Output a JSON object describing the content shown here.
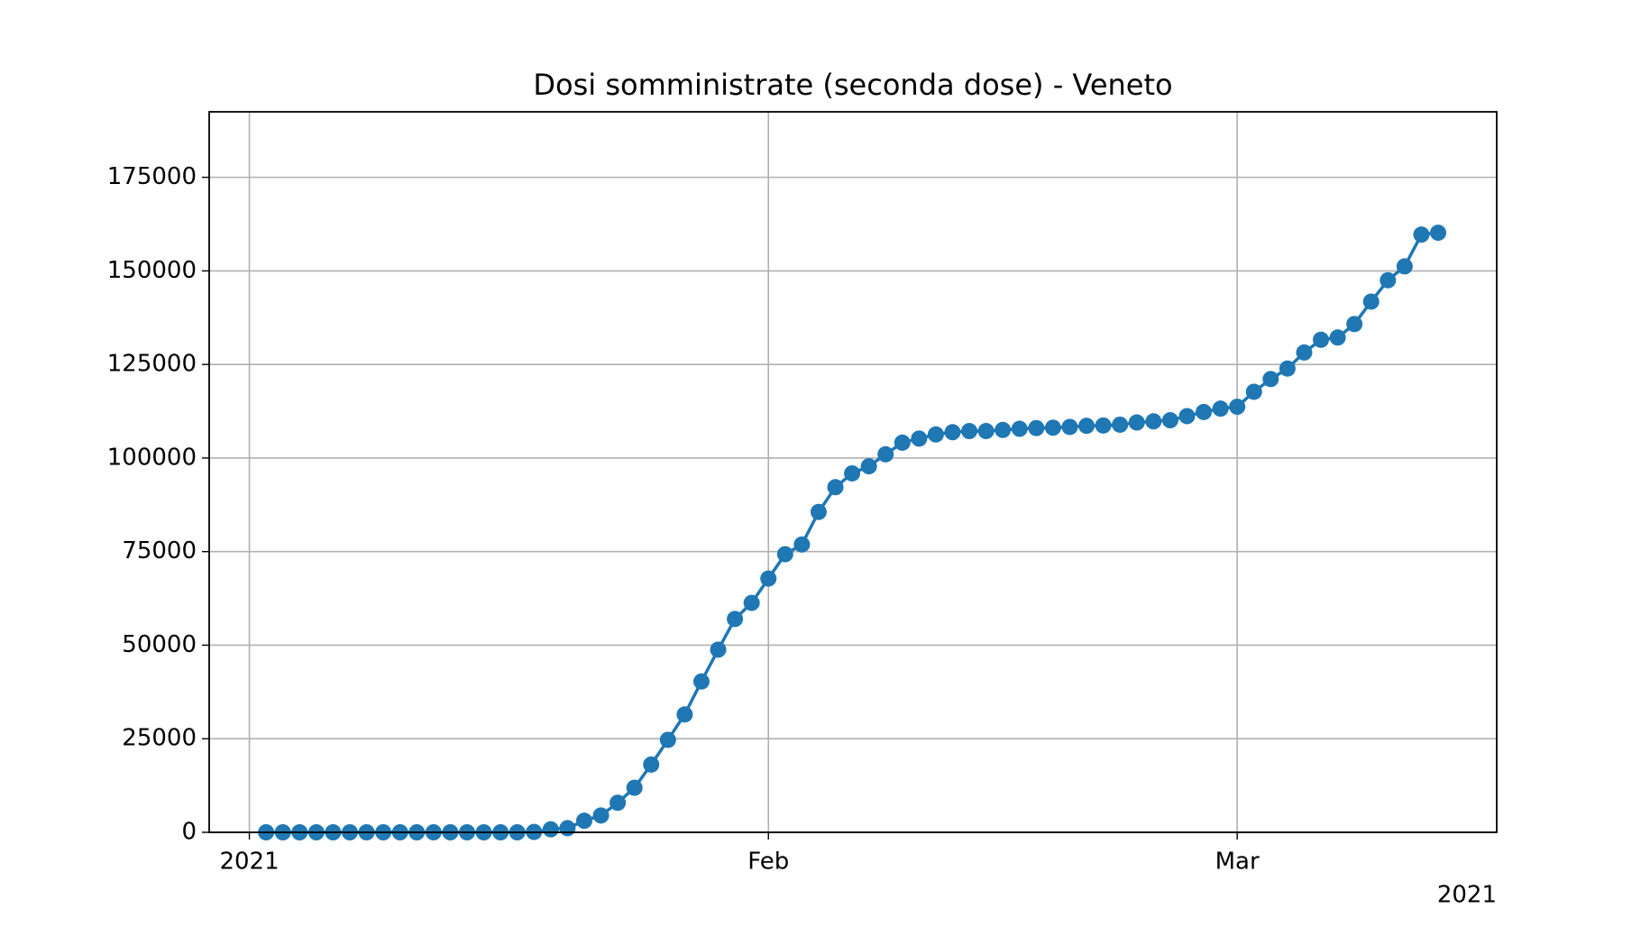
{
  "chart_data": {
    "type": "line",
    "title": "Dosi somministrate (seconda dose) - Veneto",
    "x": [
      1,
      2,
      3,
      4,
      5,
      6,
      7,
      8,
      9,
      10,
      11,
      12,
      13,
      14,
      15,
      16,
      17,
      18,
      19,
      20,
      21,
      22,
      23,
      24,
      25,
      26,
      27,
      28,
      29,
      30,
      31,
      32,
      33,
      34,
      35,
      36,
      37,
      38,
      39,
      40,
      41,
      42,
      43,
      44,
      45,
      46,
      47,
      48,
      49,
      50,
      51,
      52,
      53,
      54,
      55,
      56,
      57,
      58,
      59,
      60,
      61,
      62,
      63,
      64,
      65,
      66,
      67,
      68,
      69,
      70,
      71
    ],
    "series": [
      {
        "name": "Veneto",
        "color": "#1f77b4",
        "values": [
          0,
          0,
          0,
          0,
          0,
          0,
          0,
          0,
          0,
          0,
          0,
          0,
          0,
          0,
          0,
          0,
          100,
          800,
          1100,
          3100,
          4500,
          7900,
          11900,
          18100,
          24700,
          31500,
          40300,
          48800,
          57000,
          61300,
          67800,
          74300,
          76900,
          85600,
          92200,
          95900,
          97800,
          101000,
          104100,
          105200,
          106300,
          106900,
          107200,
          107200,
          107500,
          107800,
          108000,
          108100,
          108300,
          108600,
          108700,
          108900,
          109500,
          109800,
          110100,
          111200,
          112300,
          113200,
          113700,
          117700,
          121100,
          123900,
          128200,
          131600,
          132200,
          135800,
          141800,
          147500,
          151200,
          159700,
          160200
        ]
      }
    ],
    "xlim": [
      -2.4,
      74.5
    ],
    "xticks": [
      {
        "value": 0,
        "label": "2021"
      },
      {
        "value": 31,
        "label": "Feb"
      },
      {
        "value": 59,
        "label": "Mar"
      }
    ],
    "x_offset_label": "2021",
    "ylim": [
      0,
      192500
    ],
    "yticks": [
      0,
      25000,
      50000,
      75000,
      100000,
      125000,
      150000,
      175000
    ],
    "grid": true
  }
}
